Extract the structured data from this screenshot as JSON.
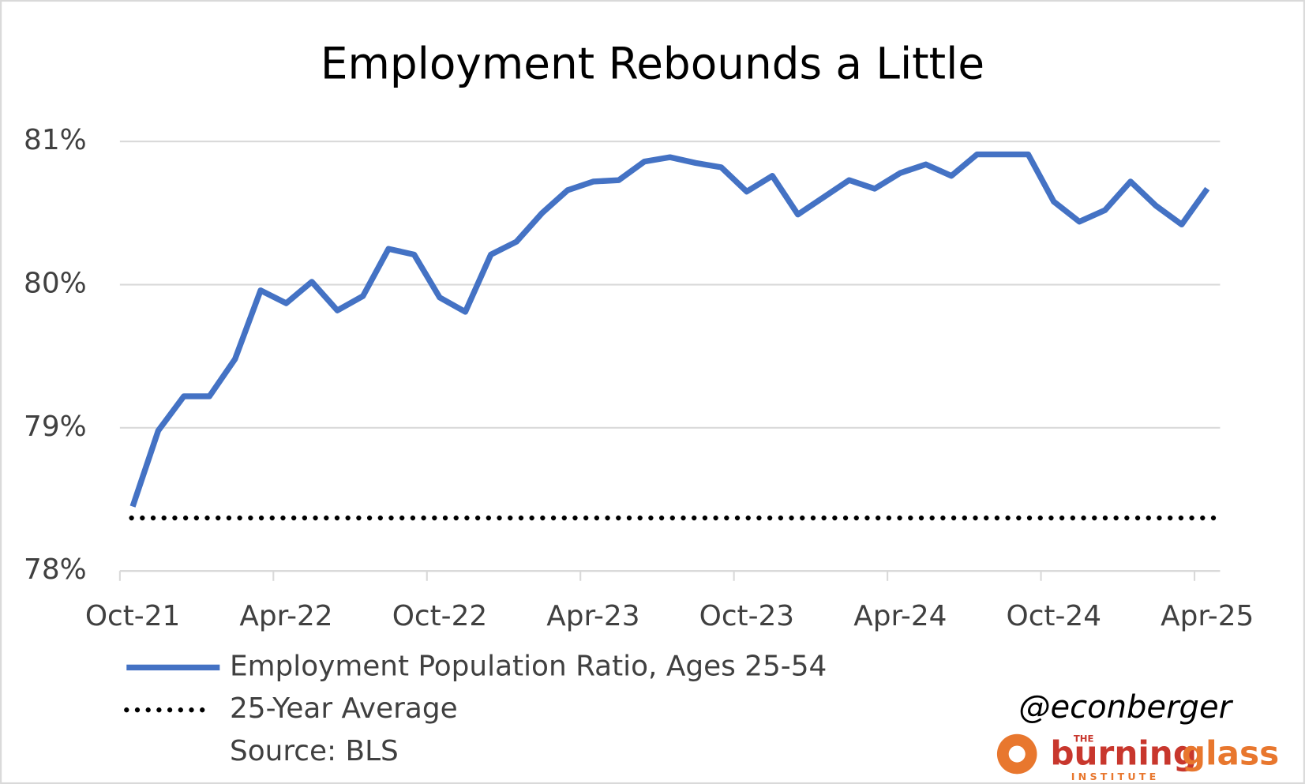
{
  "chart_data": {
    "type": "line",
    "title": "Employment Rebounds a Little",
    "categories": [
      "Oct-21",
      null,
      null,
      null,
      null,
      null,
      "Apr-22",
      null,
      null,
      null,
      null,
      null,
      "Oct-22",
      null,
      null,
      null,
      null,
      null,
      "Apr-23",
      null,
      null,
      null,
      null,
      null,
      "Oct-23",
      null,
      null,
      null,
      null,
      null,
      "Apr-24",
      null,
      null,
      null,
      null,
      null,
      "Oct-24",
      null,
      null,
      null,
      null,
      null,
      "Apr-25"
    ],
    "series": [
      {
        "name": "Employment Population Ratio, Ages 25-54",
        "color": "#4472c4",
        "values": [
          78.45,
          78.98,
          79.22,
          79.22,
          79.48,
          79.96,
          79.87,
          80.02,
          79.82,
          79.92,
          80.25,
          80.21,
          79.91,
          79.81,
          80.21,
          80.3,
          80.5,
          80.66,
          80.72,
          80.73,
          80.86,
          80.89,
          80.85,
          80.82,
          80.65,
          80.76,
          80.49,
          80.61,
          80.73,
          80.67,
          80.78,
          80.84,
          80.76,
          80.91,
          80.91,
          80.91,
          80.58,
          80.44,
          80.52,
          80.72,
          80.55,
          80.42,
          80.67
        ]
      }
    ],
    "reference_line": {
      "name": "25-Year Average",
      "value": 78.37,
      "color": "#000000",
      "style": "dotted"
    },
    "ylim": [
      78,
      81
    ],
    "yticks": [
      {
        "value": 78,
        "label": "78%"
      },
      {
        "value": 79,
        "label": "79%"
      },
      {
        "value": 80,
        "label": "80%"
      },
      {
        "value": 81,
        "label": "81%"
      }
    ],
    "grid": true,
    "source": "Source: BLS",
    "handle": "@econberger",
    "logo": {
      "the": "THE",
      "burning": "burning",
      "glass": "glass",
      "institute": "INSTITUTE"
    }
  }
}
